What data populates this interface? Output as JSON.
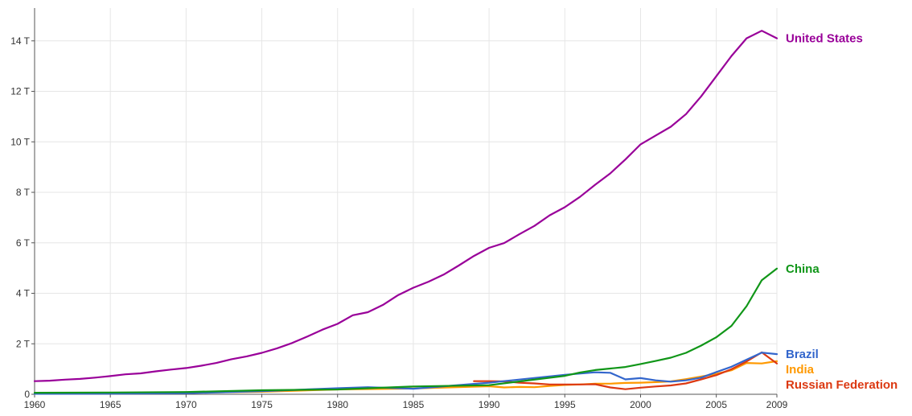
{
  "chart_data": {
    "type": "line",
    "title": "",
    "xlabel": "",
    "ylabel": "",
    "xlim": [
      1960,
      2009
    ],
    "ylim": [
      0,
      15.3
    ],
    "grid": true,
    "legend": "right-end-labels",
    "x_ticks": [
      {
        "value": 1960,
        "label": "1960"
      },
      {
        "value": 1965,
        "label": "1965"
      },
      {
        "value": 1970,
        "label": "1970"
      },
      {
        "value": 1975,
        "label": "1975"
      },
      {
        "value": 1980,
        "label": "1980"
      },
      {
        "value": 1985,
        "label": "1985"
      },
      {
        "value": 1990,
        "label": "1990"
      },
      {
        "value": 1995,
        "label": "1995"
      },
      {
        "value": 2000,
        "label": "2000"
      },
      {
        "value": 2005,
        "label": "2005"
      },
      {
        "value": 2009,
        "label": "2009"
      }
    ],
    "y_ticks": [
      {
        "value": 0,
        "label": "0"
      },
      {
        "value": 2,
        "label": "2 T"
      },
      {
        "value": 4,
        "label": "4 T"
      },
      {
        "value": 6,
        "label": "6 T"
      },
      {
        "value": 8,
        "label": "8 T"
      },
      {
        "value": 10,
        "label": "10 T"
      },
      {
        "value": 12,
        "label": "12 T"
      },
      {
        "value": 14,
        "label": "14 T"
      }
    ],
    "series": [
      {
        "name": "United States",
        "color": "#990099",
        "x": [
          1960,
          1961,
          1962,
          1963,
          1964,
          1965,
          1966,
          1967,
          1968,
          1969,
          1970,
          1971,
          1972,
          1973,
          1974,
          1975,
          1976,
          1977,
          1978,
          1979,
          1980,
          1981,
          1982,
          1983,
          1984,
          1985,
          1986,
          1987,
          1988,
          1989,
          1990,
          1991,
          1992,
          1993,
          1994,
          1995,
          1996,
          1997,
          1998,
          1999,
          2000,
          2001,
          2002,
          2003,
          2004,
          2005,
          2006,
          2007,
          2008,
          2009
        ],
        "values": [
          0.52,
          0.54,
          0.58,
          0.61,
          0.66,
          0.72,
          0.79,
          0.83,
          0.91,
          0.98,
          1.04,
          1.13,
          1.24,
          1.39,
          1.5,
          1.64,
          1.82,
          2.03,
          2.29,
          2.56,
          2.79,
          3.13,
          3.25,
          3.54,
          3.93,
          4.22,
          4.46,
          4.74,
          5.1,
          5.48,
          5.8,
          5.99,
          6.34,
          6.67,
          7.09,
          7.41,
          7.82,
          8.3,
          8.75,
          9.3,
          9.9,
          10.25,
          10.6,
          11.1,
          11.8,
          12.6,
          13.4,
          14.1,
          14.4,
          14.1
        ]
      },
      {
        "name": "China",
        "color": "#109618",
        "x": [
          1960,
          1965,
          1970,
          1975,
          1980,
          1985,
          1990,
          1995,
          1996,
          1997,
          1998,
          1999,
          2000,
          2001,
          2002,
          2003,
          2004,
          2005,
          2006,
          2007,
          2008,
          2009
        ],
        "values": [
          0.06,
          0.07,
          0.09,
          0.16,
          0.19,
          0.31,
          0.36,
          0.73,
          0.86,
          0.96,
          1.02,
          1.08,
          1.2,
          1.32,
          1.45,
          1.64,
          1.93,
          2.26,
          2.71,
          3.49,
          4.52,
          4.98
        ]
      },
      {
        "name": "Brazil",
        "color": "#3366cc",
        "x": [
          1960,
          1965,
          1970,
          1975,
          1980,
          1982,
          1985,
          1990,
          1995,
          1997,
          1998,
          1999,
          2000,
          2001,
          2002,
          2003,
          2004,
          2005,
          2006,
          2007,
          2008,
          2009
        ],
        "values": [
          0.02,
          0.03,
          0.04,
          0.12,
          0.24,
          0.28,
          0.22,
          0.46,
          0.77,
          0.87,
          0.85,
          0.59,
          0.64,
          0.55,
          0.5,
          0.55,
          0.66,
          0.88,
          1.09,
          1.37,
          1.65,
          1.59
        ]
      },
      {
        "name": "India",
        "color": "#ff9900",
        "x": [
          1960,
          1965,
          1970,
          1975,
          1980,
          1985,
          1990,
          1991,
          1992,
          1993,
          1994,
          1995,
          1996,
          1997,
          1998,
          1999,
          2000,
          2001,
          2002,
          2003,
          2004,
          2005,
          2006,
          2007,
          2008,
          2009
        ],
        "values": [
          0.04,
          0.06,
          0.06,
          0.1,
          0.19,
          0.23,
          0.32,
          0.27,
          0.29,
          0.28,
          0.33,
          0.37,
          0.39,
          0.42,
          0.42,
          0.45,
          0.46,
          0.48,
          0.51,
          0.6,
          0.7,
          0.81,
          0.95,
          1.24,
          1.22,
          1.31
        ]
      },
      {
        "name": "Russian Federation",
        "color": "#dc3912",
        "x": [
          1989,
          1990,
          1991,
          1992,
          1993,
          1994,
          1995,
          1996,
          1997,
          1998,
          1999,
          2000,
          2001,
          2002,
          2003,
          2004,
          2005,
          2006,
          2007,
          2008,
          2009
        ],
        "values": [
          0.52,
          0.52,
          0.51,
          0.46,
          0.43,
          0.39,
          0.39,
          0.39,
          0.4,
          0.27,
          0.2,
          0.26,
          0.31,
          0.35,
          0.43,
          0.59,
          0.76,
          0.99,
          1.3,
          1.66,
          1.22
        ]
      }
    ]
  }
}
